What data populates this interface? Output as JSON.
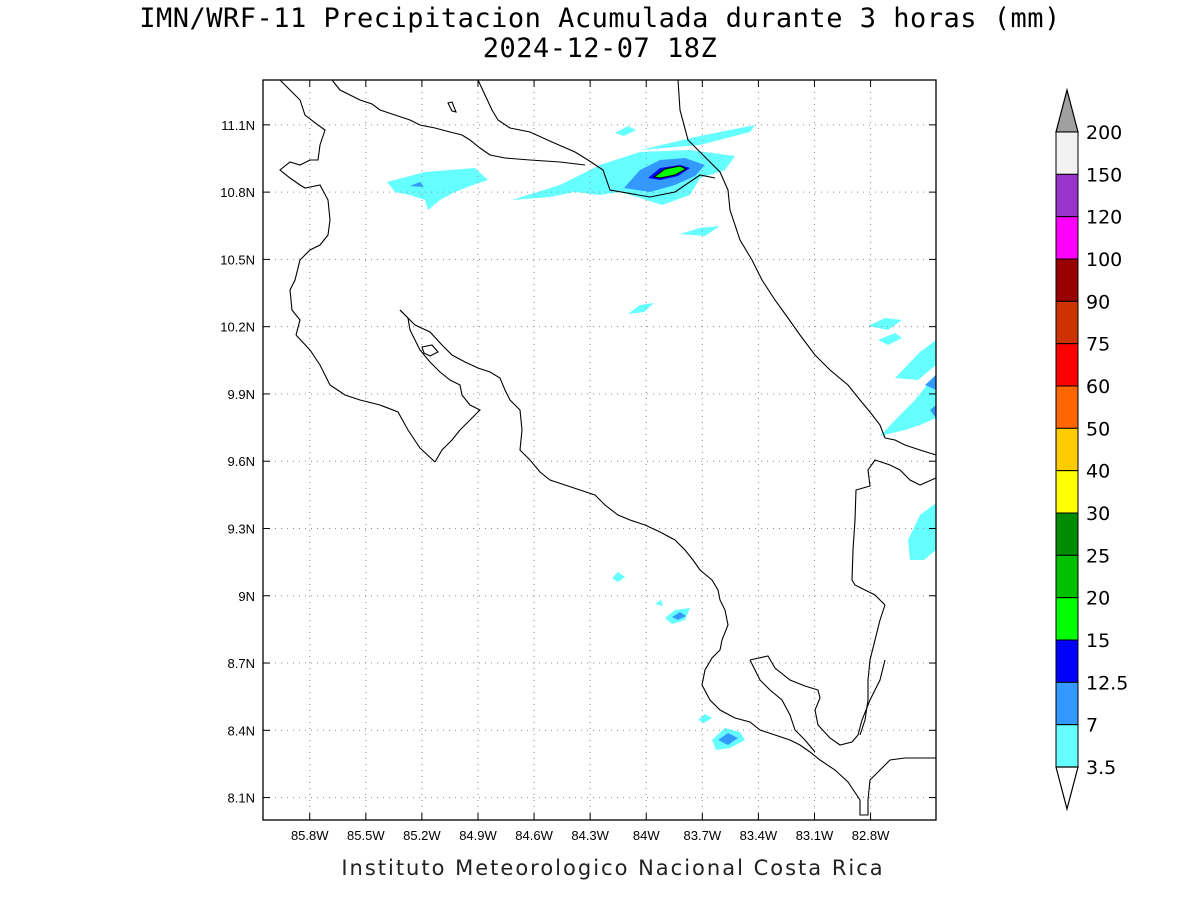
{
  "title": {
    "line1": "IMN/WRF-11 Precipitacion Acumulada durante 3 horas (mm)",
    "line2": "2024-12-07 18Z"
  },
  "credit": "Instituto Meteorologico Nacional Costa Rica",
  "map": {
    "lon_range": [
      -86.05,
      -82.45
    ],
    "lat_range": [
      8.0,
      11.3
    ],
    "lon_ticks": [
      "85.8W",
      "85.5W",
      "85.2W",
      "84.9W",
      "84.6W",
      "84.3W",
      "84W",
      "83.7W",
      "83.4W",
      "83.1W",
      "82.8W"
    ],
    "lon_tick_values": [
      -85.8,
      -85.5,
      -85.2,
      -84.9,
      -84.6,
      -84.3,
      -84.0,
      -83.7,
      -83.4,
      -83.1,
      -82.8
    ],
    "lat_ticks": [
      "11.1N",
      "10.8N",
      "10.5N",
      "10.2N",
      "9.9N",
      "9.6N",
      "9.3N",
      "9N",
      "8.7N",
      "8.4N",
      "8.1N"
    ],
    "lat_tick_values": [
      11.1,
      10.8,
      10.5,
      10.2,
      9.9,
      9.6,
      9.3,
      9.0,
      8.7,
      8.4,
      8.1
    ],
    "grid": true
  },
  "colorbar": {
    "labels": [
      "200",
      "150",
      "120",
      "100",
      "90",
      "75",
      "60",
      "50",
      "40",
      "30",
      "25",
      "20",
      "15",
      "12.5",
      "7",
      "3.5"
    ],
    "colors": [
      "#ffffff",
      "#f2f2f2",
      "#9933cc",
      "#ff00ff",
      "#990000",
      "#cc3300",
      "#ff0000",
      "#ff6600",
      "#ffcc00",
      "#ffff00",
      "#008c00",
      "#00c000",
      "#00ff00",
      "#0000ff",
      "#3399ff",
      "#66ffff"
    ],
    "over_color": "#a0a0a0",
    "under_color": "#ffffff"
  }
}
